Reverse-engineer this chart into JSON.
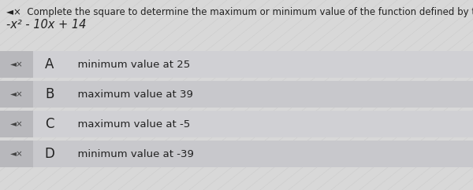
{
  "title_line1": "◄×  Complete the square to determine the maximum or minimum value of the function defined by the expression.",
  "expression": "-x² - 10x + 14",
  "options": [
    {
      "letter": "A",
      "text": "  minimum value at 25"
    },
    {
      "letter": "B",
      "text": "  maximum value at 39"
    },
    {
      "letter": "C",
      "text": "  maximum value at -5"
    },
    {
      "letter": "D",
      "text": "  minimum value at -39"
    }
  ],
  "bg_color": "#d8d8d8",
  "option_box_color": "#c8c8c8",
  "option_text_bg": "#e8e8ec",
  "text_color": "#222222",
  "speaker_color": "#444444",
  "title_fontsize": 8.5,
  "expr_fontsize": 10.5,
  "option_fontsize": 9.5,
  "letter_fontsize": 12
}
